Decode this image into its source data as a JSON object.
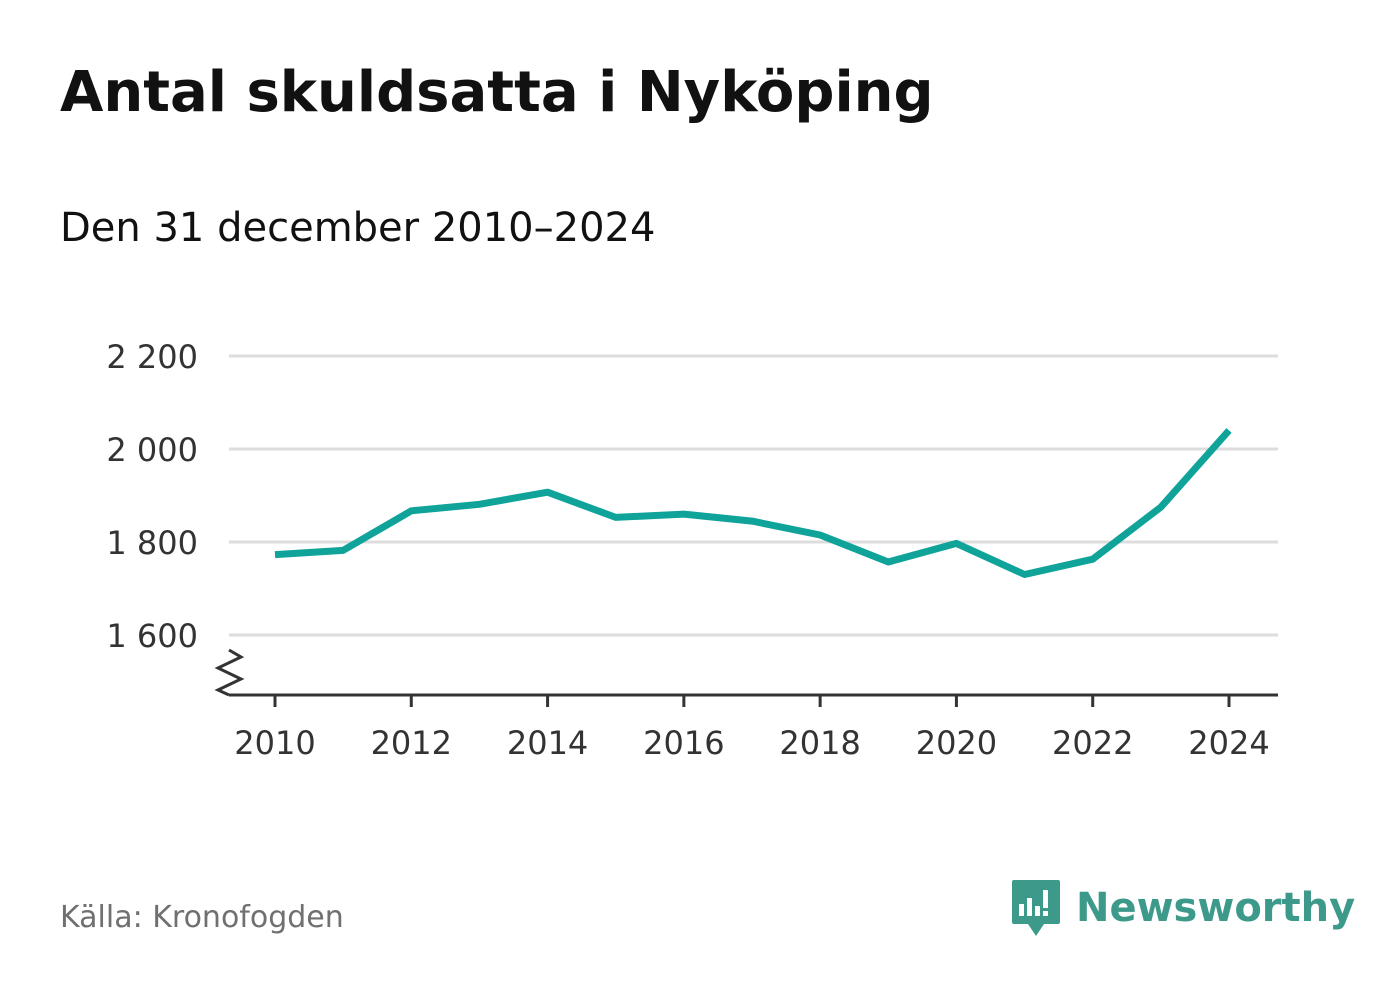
{
  "title": "Antal skuldsatta i Nyköping",
  "subtitle": "Den 31 december 2010–2024",
  "source": "Källa: Kronofogden",
  "brand": {
    "name": "Newsworthy",
    "icon": "newsworthy-logo-icon",
    "color": "#3d9a8b"
  },
  "colors": {
    "line": "#0fa39a",
    "grid": "#dddddd",
    "axis": "#333333"
  },
  "chart_data": {
    "type": "line",
    "x": [
      2010,
      2011,
      2012,
      2013,
      2014,
      2015,
      2016,
      2017,
      2018,
      2019,
      2020,
      2021,
      2022,
      2023,
      2024
    ],
    "series": [
      {
        "values": [
          1773,
          1782,
          1867,
          1881,
          1907,
          1853,
          1860,
          1845,
          1815,
          1757,
          1797,
          1730,
          1763,
          1875,
          2040
        ]
      }
    ],
    "xticks": [
      "2010",
      "2012",
      "2014",
      "2016",
      "2018",
      "2020",
      "2022",
      "2024"
    ],
    "yticks": [
      {
        "value": 1600,
        "label": "1 600"
      },
      {
        "value": 1800,
        "label": "1 800"
      },
      {
        "value": 2000,
        "label": "2 000"
      },
      {
        "value": 2200,
        "label": "2 200"
      }
    ],
    "ylim": [
      1470,
      2200
    ],
    "y_axis_break": true,
    "grid": true,
    "legend": "none"
  }
}
